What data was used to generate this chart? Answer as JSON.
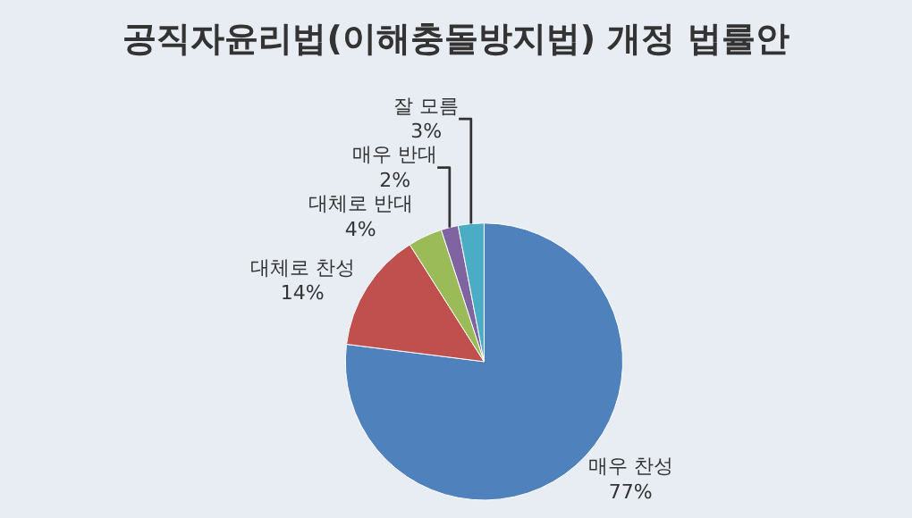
{
  "chart_data": {
    "type": "pie",
    "title": "공직자윤리법(이해충돌방지법) 개정 법률안",
    "categories": [
      "매우 찬성",
      "대체로 찬성",
      "대체로 반대",
      "매우 반대",
      "잘 모름"
    ],
    "values": [
      77,
      14,
      4,
      2,
      3
    ],
    "value_labels": [
      "77%",
      "14%",
      "4%",
      "2%",
      "3%"
    ],
    "colors": [
      "#4f81bd",
      "#c0504d",
      "#9bbb59",
      "#8064a2",
      "#4bacc6"
    ],
    "legend": false
  }
}
